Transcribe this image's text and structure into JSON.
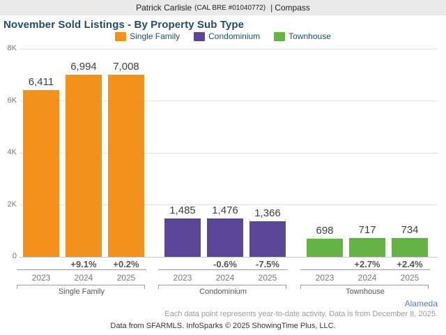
{
  "header": {
    "agent": "Patrick Carlisle",
    "license": "(CAL BRE #01040772)",
    "separator": "|",
    "brand": "Compass"
  },
  "title": "November Sold Listings - By Property Sub Type",
  "legend": [
    {
      "label": "Single Family",
      "color": "#F2921D"
    },
    {
      "label": "Condominium",
      "color": "#5A4596"
    },
    {
      "label": "Townhouse",
      "color": "#66B345"
    }
  ],
  "chart_data": {
    "type": "bar",
    "title": "November Sold Listings - By Property Sub Type",
    "xlabel": "",
    "ylabel": "",
    "ylim": [
      0,
      8000
    ],
    "grid": true,
    "legend_position": "top",
    "yticks": [
      {
        "label": "8K",
        "value": 8000
      },
      {
        "label": "6K",
        "value": 6000
      },
      {
        "label": "4K",
        "value": 4000
      },
      {
        "label": "2K",
        "value": 2000
      },
      {
        "label": "0",
        "value": 0
      }
    ],
    "categories": [
      "2023",
      "2024",
      "2025"
    ],
    "groups": [
      {
        "name": "Single Family",
        "color": "#F2921D",
        "years": [
          "2023",
          "2024",
          "2025"
        ],
        "values": [
          6411,
          6994,
          7008
        ],
        "value_labels": [
          "6,411",
          "6,994",
          "7,008"
        ],
        "pct_change": [
          null,
          "+9.1%",
          "+0.2%"
        ]
      },
      {
        "name": "Condominium",
        "color": "#5A4596",
        "years": [
          "2023",
          "2024",
          "2025"
        ],
        "values": [
          1485,
          1476,
          1366
        ],
        "value_labels": [
          "1,485",
          "1,476",
          "1,366"
        ],
        "pct_change": [
          null,
          "-0.6%",
          "-7.5%"
        ]
      },
      {
        "name": "Townhouse",
        "color": "#66B345",
        "years": [
          "2023",
          "2024",
          "2025"
        ],
        "values": [
          698,
          717,
          734
        ],
        "value_labels": [
          "698",
          "717",
          "734"
        ],
        "pct_change": [
          null,
          "+2.7%",
          "+2.4%"
        ]
      }
    ]
  },
  "footer": {
    "region": "Alameda",
    "note": "Each data point represents year-to-date activity. Data is from December 8, 2025.",
    "attribution": "Data from SFARMLS. InfoSparks © 2025 ShowingTime Plus, LLC."
  }
}
